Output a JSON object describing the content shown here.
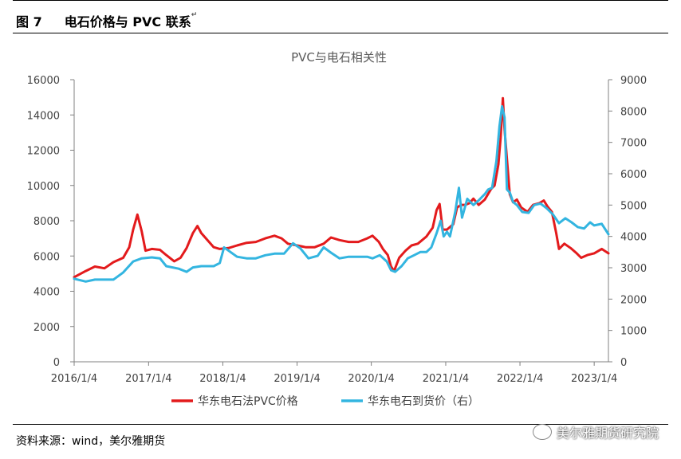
{
  "figure": {
    "label": "图 7",
    "heading": "电石价格与 PVC 联系",
    "source": "资料来源：wind，美尔雅期货",
    "watermark": "美尔雅期货研究院"
  },
  "chart_data": {
    "type": "line",
    "title": "PVC与电石相关性",
    "x_tick_labels": [
      "2016/1/4",
      "2017/1/4",
      "2018/1/4",
      "2019/1/4",
      "2020/1/4",
      "2021/1/4",
      "2022/1/4",
      "2023/1/4"
    ],
    "x_range": [
      "2016/1/4",
      "2023/3/15"
    ],
    "y_left": {
      "min": 0,
      "max": 16000,
      "ticks": [
        "0",
        "2000",
        "4000",
        "6000",
        "8000",
        "10000",
        "12000",
        "14000",
        "16000"
      ]
    },
    "y_right": {
      "min": 0,
      "max": 9000,
      "ticks": [
        "0",
        "1000",
        "2000",
        "3000",
        "4000",
        "5000",
        "6000",
        "7000",
        "8000",
        "9000"
      ]
    },
    "grid": false,
    "legend_position": "bottom",
    "series": [
      {
        "name": "华东电石法PVC价格",
        "axis": "left",
        "color": "#E31A1C",
        "points": [
          [
            "2016/1/4",
            4800
          ],
          [
            "2016/3/1",
            5150
          ],
          [
            "2016/4/15",
            5400
          ],
          [
            "2016/6/1",
            5300
          ],
          [
            "2016/7/15",
            5650
          ],
          [
            "2016/9/1",
            5900
          ],
          [
            "2016/10/1",
            6500
          ],
          [
            "2016/10/20",
            7500
          ],
          [
            "2016/11/10",
            8350
          ],
          [
            "2016/12/1",
            7400
          ],
          [
            "2016/12/20",
            6300
          ],
          [
            "2017/1/20",
            6400
          ],
          [
            "2017/3/1",
            6350
          ],
          [
            "2017/4/1",
            6050
          ],
          [
            "2017/5/10",
            5700
          ],
          [
            "2017/6/10",
            5900
          ],
          [
            "2017/7/10",
            6450
          ],
          [
            "2017/8/10",
            7300
          ],
          [
            "2017/9/1",
            7700
          ],
          [
            "2017/9/20",
            7300
          ],
          [
            "2017/10/20",
            6900
          ],
          [
            "2017/11/20",
            6500
          ],
          [
            "2017/12/20",
            6400
          ],
          [
            "2018/2/1",
            6450
          ],
          [
            "2018/3/15",
            6600
          ],
          [
            "2018/5/1",
            6750
          ],
          [
            "2018/6/15",
            6800
          ],
          [
            "2018/8/1",
            7000
          ],
          [
            "2018/9/15",
            7150
          ],
          [
            "2018/10/20",
            7000
          ],
          [
            "2018/11/20",
            6700
          ],
          [
            "2019/1/4",
            6600
          ],
          [
            "2019/2/15",
            6500
          ],
          [
            "2019/4/1",
            6500
          ],
          [
            "2019/5/15",
            6700
          ],
          [
            "2019/6/20",
            7050
          ],
          [
            "2019/8/1",
            6900
          ],
          [
            "2019/9/15",
            6800
          ],
          [
            "2019/11/1",
            6800
          ],
          [
            "2019/12/15",
            7000
          ],
          [
            "2020/1/10",
            7150
          ],
          [
            "2020/2/10",
            6800
          ],
          [
            "2020/3/1",
            6400
          ],
          [
            "2020/3/25",
            6050
          ],
          [
            "2020/4/10",
            5400
          ],
          [
            "2020/4/25",
            5150
          ],
          [
            "2020/5/20",
            5900
          ],
          [
            "2020/6/20",
            6300
          ],
          [
            "2020/7/20",
            6600
          ],
          [
            "2020/8/20",
            6700
          ],
          [
            "2020/10/1",
            7100
          ],
          [
            "2020/11/1",
            7600
          ],
          [
            "2020/11/20",
            8600
          ],
          [
            "2020/12/5",
            8950
          ],
          [
            "2020/12/20",
            7500
          ],
          [
            "2021/1/10",
            7500
          ],
          [
            "2021/2/10",
            7800
          ],
          [
            "2021/3/1",
            8750
          ],
          [
            "2021/3/20",
            8900
          ],
          [
            "2021/4/10",
            8900
          ],
          [
            "2021/5/1",
            9000
          ],
          [
            "2021/5/20",
            9250
          ],
          [
            "2021/6/15",
            8900
          ],
          [
            "2021/7/15",
            9200
          ],
          [
            "2021/8/15",
            9800
          ],
          [
            "2021/9/1",
            10000
          ],
          [
            "2021/9/20",
            11200
          ],
          [
            "2021/10/1",
            12700
          ],
          [
            "2021/10/12",
            14950
          ],
          [
            "2021/10/20",
            13200
          ],
          [
            "2021/11/1",
            11500
          ],
          [
            "2021/11/15",
            9500
          ],
          [
            "2021/12/1",
            9050
          ],
          [
            "2021/12/20",
            9200
          ],
          [
            "2022/1/10",
            8750
          ],
          [
            "2022/2/10",
            8500
          ],
          [
            "2022/3/10",
            8900
          ],
          [
            "2022/4/10",
            9000
          ],
          [
            "2022/5/1",
            9150
          ],
          [
            "2022/5/20",
            8800
          ],
          [
            "2022/6/10",
            8500
          ],
          [
            "2022/7/1",
            7300
          ],
          [
            "2022/7/15",
            6400
          ],
          [
            "2022/8/10",
            6700
          ],
          [
            "2022/9/10",
            6450
          ],
          [
            "2022/10/10",
            6150
          ],
          [
            "2022/11/1",
            5900
          ],
          [
            "2022/12/1",
            6050
          ],
          [
            "2023/1/4",
            6150
          ],
          [
            "2023/2/10",
            6400
          ],
          [
            "2023/3/15",
            6150
          ]
        ]
      },
      {
        "name": "华东电石到货价（右）",
        "axis": "right",
        "color": "#33B5E0",
        "points": [
          [
            "2016/1/4",
            2650
          ],
          [
            "2016/3/1",
            2560
          ],
          [
            "2016/4/15",
            2620
          ],
          [
            "2016/6/1",
            2620
          ],
          [
            "2016/7/15",
            2620
          ],
          [
            "2016/9/1",
            2850
          ],
          [
            "2016/10/20",
            3200
          ],
          [
            "2016/12/1",
            3300
          ],
          [
            "2017/1/20",
            3330
          ],
          [
            "2017/3/1",
            3300
          ],
          [
            "2017/4/1",
            3050
          ],
          [
            "2017/6/1",
            2970
          ],
          [
            "2017/7/10",
            2870
          ],
          [
            "2017/8/10",
            3010
          ],
          [
            "2017/9/20",
            3050
          ],
          [
            "2017/11/20",
            3050
          ],
          [
            "2017/12/20",
            3150
          ],
          [
            "2018/1/10",
            3650
          ],
          [
            "2018/2/15",
            3480
          ],
          [
            "2018/3/15",
            3350
          ],
          [
            "2018/5/1",
            3300
          ],
          [
            "2018/6/15",
            3300
          ],
          [
            "2018/8/1",
            3400
          ],
          [
            "2018/9/15",
            3450
          ],
          [
            "2018/11/1",
            3450
          ],
          [
            "2018/12/15",
            3780
          ],
          [
            "2019/1/20",
            3620
          ],
          [
            "2019/3/1",
            3300
          ],
          [
            "2019/4/15",
            3380
          ],
          [
            "2019/5/15",
            3650
          ],
          [
            "2019/6/20",
            3480
          ],
          [
            "2019/8/1",
            3300
          ],
          [
            "2019/9/15",
            3350
          ],
          [
            "2019/11/1",
            3350
          ],
          [
            "2019/12/15",
            3350
          ],
          [
            "2020/1/10",
            3300
          ],
          [
            "2020/2/15",
            3400
          ],
          [
            "2020/3/20",
            3200
          ],
          [
            "2020/4/10",
            2920
          ],
          [
            "2020/4/30",
            2870
          ],
          [
            "2020/6/1",
            3050
          ],
          [
            "2020/7/1",
            3300
          ],
          [
            "2020/8/1",
            3400
          ],
          [
            "2020/9/1",
            3500
          ],
          [
            "2020/10/1",
            3500
          ],
          [
            "2020/10/25",
            3650
          ],
          [
            "2020/11/20",
            4100
          ],
          [
            "2020/12/10",
            4500
          ],
          [
            "2020/12/25",
            4000
          ],
          [
            "2021/1/10",
            4150
          ],
          [
            "2021/1/25",
            4000
          ],
          [
            "2021/2/20",
            4800
          ],
          [
            "2021/3/10",
            5550
          ],
          [
            "2021/3/25",
            4600
          ],
          [
            "2021/4/20",
            5200
          ],
          [
            "2021/5/20",
            5000
          ],
          [
            "2021/6/15",
            5150
          ],
          [
            "2021/7/15",
            5350
          ],
          [
            "2021/8/1",
            5500
          ],
          [
            "2021/8/20",
            5550
          ],
          [
            "2021/9/10",
            6400
          ],
          [
            "2021/9/25",
            7500
          ],
          [
            "2021/10/8",
            8150
          ],
          [
            "2021/10/20",
            7800
          ],
          [
            "2021/11/1",
            5500
          ],
          [
            "2021/11/15",
            5400
          ],
          [
            "2021/12/1",
            5100
          ],
          [
            "2021/12/20",
            5000
          ],
          [
            "2022/1/15",
            4780
          ],
          [
            "2022/2/15",
            4750
          ],
          [
            "2022/3/15",
            5000
          ],
          [
            "2022/4/15",
            5050
          ],
          [
            "2022/5/15",
            4900
          ],
          [
            "2022/6/15",
            4700
          ],
          [
            "2022/7/15",
            4420
          ],
          [
            "2022/8/15",
            4580
          ],
          [
            "2022/9/15",
            4450
          ],
          [
            "2022/10/15",
            4300
          ],
          [
            "2022/11/15",
            4250
          ],
          [
            "2022/12/15",
            4450
          ],
          [
            "2023/1/4",
            4350
          ],
          [
            "2023/2/10",
            4400
          ],
          [
            "2023/3/15",
            4070
          ]
        ]
      }
    ]
  }
}
